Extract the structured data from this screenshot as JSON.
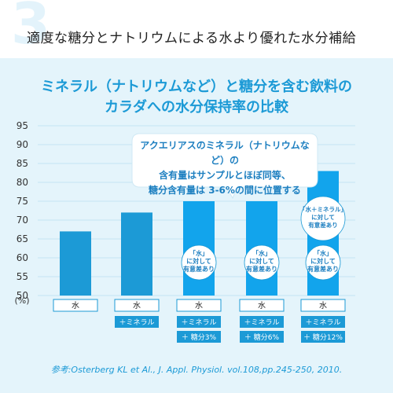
{
  "headline": {
    "number": "3",
    "text": "適度な糖分とナトリウムによる水より優れた水分補給"
  },
  "chart_title": {
    "line1": "ミネラル（ナトリウムなど）と糖分を含む飲料の",
    "line2": "カラダへの水分保持率の比較"
  },
  "callout": {
    "line1": "アクエリアスのミネラル（ナトリウムなど）の",
    "line2": "含有量はサンプルとほぼ同等、",
    "line3": "糖分含有量は 3-6%の間に位置する"
  },
  "reference": "参考:Osterberg KL et Al., J. Appl. Physiol. vol.108,pp.245-250, 2010.",
  "colors": {
    "bar_plain": "#1c9ad6",
    "bar_bright": "#12a4ec",
    "accent": "#1c9ad6",
    "panel_bg": "#e4f4fb"
  },
  "chart_data": {
    "type": "bar",
    "ylabel": "(%)",
    "ylim": [
      50,
      95
    ],
    "yticks": [
      50,
      55,
      60,
      65,
      70,
      75,
      80,
      85,
      90,
      95
    ],
    "categories": [
      {
        "main": "水",
        "tags": []
      },
      {
        "main": "水",
        "tags": [
          "＋ミネラル"
        ]
      },
      {
        "main": "水",
        "tags": [
          "＋ミネラル",
          "＋ 糖分3%"
        ]
      },
      {
        "main": "水",
        "tags": [
          "＋ミネラル",
          "＋ 糖分6%"
        ]
      },
      {
        "main": "水",
        "tags": [
          "＋ミネラル",
          "＋ 糖分12%"
        ]
      }
    ],
    "values": [
      67,
      72,
      75,
      75,
      83
    ],
    "annotations": [
      {
        "bar": 2,
        "lines": [
          "「水」",
          "に対して",
          "有意差あり"
        ]
      },
      {
        "bar": 3,
        "lines": [
          "「水」",
          "に対して",
          "有意差あり"
        ]
      },
      {
        "bar": 4,
        "lines": [
          "「水」",
          "に対して",
          "有意差あり"
        ]
      },
      {
        "bar": 4,
        "lines": [
          "「水＋ミネラル」",
          "に対して",
          "有意差あり"
        ]
      }
    ]
  }
}
